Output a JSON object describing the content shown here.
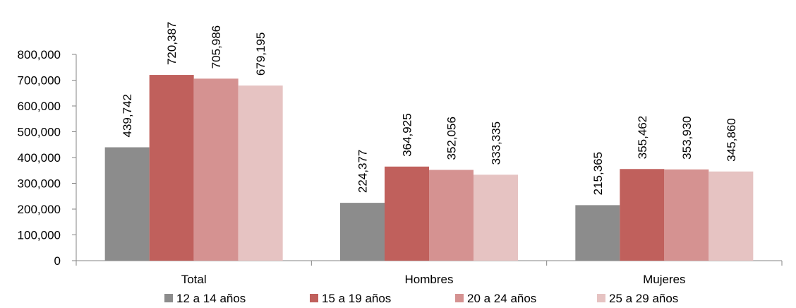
{
  "chart_data": {
    "type": "bar",
    "title": "",
    "xlabel": "",
    "ylabel": "",
    "categories": [
      "Total",
      "Hombres",
      "Mujeres"
    ],
    "series": [
      {
        "name": "12 a 14 años",
        "color": "#8c8c8c",
        "values": [
          439742,
          224377,
          215365
        ],
        "labels": [
          "439,742",
          "224,377",
          "215,365"
        ]
      },
      {
        "name": "15 a 19 años",
        "color": "#c0605c",
        "values": [
          720387,
          364925,
          355462
        ],
        "labels": [
          "720,387",
          "364,925",
          "355,462"
        ]
      },
      {
        "name": "20 a 24 años",
        "color": "#d59291",
        "values": [
          705986,
          352056,
          353930
        ],
        "labels": [
          "705,986",
          "352,056",
          "353,930"
        ]
      },
      {
        "name": "25 a 29 años",
        "color": "#e6c3c2",
        "values": [
          679195,
          333335,
          345860
        ],
        "labels": [
          "679,195",
          "333,335",
          "345,860"
        ]
      }
    ],
    "ylim": [
      0,
      800000
    ],
    "yticks": [
      0,
      100000,
      200000,
      300000,
      400000,
      500000,
      600000,
      700000,
      800000
    ],
    "ytick_labels": [
      "0",
      "100,000",
      "200,000",
      "300,000",
      "400,000",
      "500,000",
      "600,000",
      "700,000",
      "800,000"
    ],
    "grid": false,
    "legend_position": "bottom"
  }
}
